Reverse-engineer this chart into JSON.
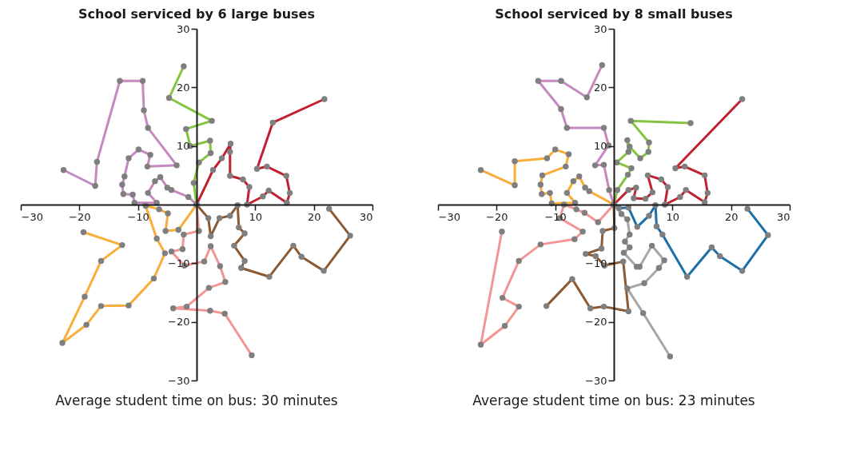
{
  "chart_data": [
    {
      "type": "line",
      "title": "School serviced by 6 large buses",
      "annotations": [
        "Average student time on bus: 30 minutes"
      ],
      "xlim": [
        -30,
        30
      ],
      "ylim": [
        -30,
        30
      ],
      "xticks": [
        -30,
        -20,
        -10,
        10,
        20,
        30
      ],
      "yticks": [
        -30,
        -20,
        -10,
        10,
        20,
        30
      ],
      "grid": false,
      "marker": "circle",
      "line_style": "solid",
      "series": [
        {
          "color": "#c688c0",
          "x": [
            0,
            -1.4,
            -4.3,
            -5.0,
            -6.2,
            -7.1,
            -8.3,
            -6.8,
            -10.6,
            -10.9,
            -12.5,
            -12.7,
            -12.3,
            -11.6,
            -9.9,
            -7.9,
            -8.4,
            -3.4,
            -8.3,
            -9.0,
            -9.2,
            -13.1,
            -17.0,
            -17.3,
            -22.7
          ],
          "values": [
            0,
            1.3,
            2.5,
            2.9,
            4.7,
            4.0,
            2.0,
            0.3,
            0.3,
            1.7,
            1.8,
            3.4,
            4.8,
            7.9,
            9.4,
            8.5,
            6.5,
            6.7,
            13.1,
            16.1,
            21.1,
            21.1,
            7.3,
            3.2,
            5.9
          ]
        },
        {
          "color": "#84c441",
          "x": [
            0,
            -0.5,
            0.4,
            2.4,
            2.3,
            -1.1,
            -1.8,
            2.6,
            -4.7,
            -2.2
          ],
          "values": [
            0,
            3.7,
            7.2,
            8.8,
            10.9,
            10.0,
            12.9,
            14.3,
            18.2,
            23.6
          ]
        },
        {
          "color": "#c0202f",
          "x": [
            0,
            2.8,
            4.3,
            5.8,
            5.7,
            5.7,
            7.9,
            9.0,
            8.6,
            11.3,
            12.3,
            15.4,
            15.9,
            15.3,
            12.0,
            10.3,
            13.0,
            21.8
          ],
          "values": [
            0,
            5.9,
            7.9,
            10.4,
            9.0,
            4.9,
            4.3,
            3.0,
            0,
            1.4,
            2.4,
            0.3,
            2.0,
            4.9,
            6.5,
            6.1,
            14.0,
            18.0
          ]
        },
        {
          "color": "#f9ad3b",
          "x": [
            0,
            -3.1,
            -5.3,
            -4.9,
            -6.4,
            -8.7,
            -6.8,
            -5.4,
            -7.3,
            -11.6,
            -16.3,
            -18.8,
            -22.9,
            -19.1,
            -16.3,
            -12.7,
            -19.3
          ],
          "values": [
            0,
            -4.3,
            -4.5,
            -1.5,
            -0.8,
            -0.2,
            -5.8,
            -8.3,
            -12.6,
            -17.2,
            -17.3,
            -20.5,
            -23.6,
            -15.7,
            -9.6,
            -6.9,
            -4.7
          ]
        },
        {
          "color": "#f49595",
          "x": [
            0,
            0.4,
            -2.2,
            -2.4,
            -4.3,
            -2.1,
            1.3,
            2.4,
            4.0,
            4.9,
            2.1,
            -1.7,
            -4.0,
            2.3,
            4.8,
            9.4
          ],
          "values": [
            0,
            -4.5,
            -5.1,
            -7.6,
            -8.0,
            -10.4,
            -9.7,
            -7.1,
            -10.5,
            -13.2,
            -14.2,
            -17.4,
            -17.7,
            -18.1,
            -18.6,
            -25.7
          ]
        },
        {
          "color": "#8b5a32",
          "x": [
            0,
            2.0,
            2.4,
            3.9,
            5.7,
            7.0,
            7.2,
            8.2,
            6.4,
            8.2,
            7.6,
            12.4,
            16.5,
            17.9,
            21.7,
            26.2,
            22.6
          ],
          "values": [
            0,
            -2.3,
            -5.4,
            -2.3,
            -1.9,
            -0.1,
            -3.9,
            -4.9,
            -7.0,
            -9.6,
            -10.8,
            -12.3,
            -7.0,
            -8.9,
            -11.3,
            -5.3,
            -0.7
          ]
        }
      ]
    },
    {
      "type": "line",
      "title": "School serviced by 8 small buses",
      "annotations": [
        "Average student time on bus: 23 minutes"
      ],
      "xlim": [
        -30,
        30
      ],
      "ylim": [
        -30,
        30
      ],
      "xticks": [
        -30,
        -20,
        -10,
        10,
        20,
        30
      ],
      "yticks": [
        -30,
        -20,
        -10,
        10,
        20,
        30
      ],
      "grid": false,
      "marker": "circle",
      "line_style": "solid",
      "series": [
        {
          "color": "#c688c0",
          "x": [
            0,
            -0.8,
            -1.7,
            -3.2,
            -0.9,
            -1.7,
            -8.0,
            -9.0,
            -12.9,
            -9.0,
            -4.6,
            -2.0
          ],
          "values": [
            0,
            2.5,
            6.8,
            6.7,
            10.1,
            13.1,
            13.1,
            16.3,
            21.1,
            21.1,
            18.3,
            23.8
          ]
        },
        {
          "color": "#f9ad3b",
          "x": [
            0,
            -4.2,
            -4.9,
            -5.9,
            -6.9,
            -8.0,
            -6.6,
            -10.6,
            -10.9,
            -12.3,
            -12.5,
            -12.2,
            -8.2,
            -7.7,
            -10.0,
            -11.4,
            -16.9,
            -16.9,
            -22.7
          ],
          "values": [
            0,
            2.3,
            2.9,
            4.8,
            4.0,
            2.0,
            0.3,
            0.2,
            2.0,
            1.8,
            3.4,
            5.0,
            6.5,
            8.6,
            9.4,
            7.9,
            7.4,
            3.3,
            5.9
          ]
        },
        {
          "color": "#84c441",
          "x": [
            0,
            0.6,
            2.4,
            3.0,
            0.5,
            2.5,
            2.3,
            2.7,
            4.5,
            5.9,
            6.0,
            2.9,
            13.1
          ],
          "values": [
            0,
            2.5,
            5.1,
            6.2,
            7.2,
            9.0,
            11.0,
            9.9,
            7.9,
            9.0,
            10.6,
            14.3,
            13.9
          ]
        },
        {
          "color": "#c0202f",
          "x": [
            0,
            2.5,
            3.8,
            3.4,
            5.4,
            6.6,
            5.8,
            8.1,
            9.2,
            8.7,
            11.3,
            12.3,
            15.5,
            16.0,
            15.5,
            12.1,
            10.5,
            21.9
          ],
          "values": [
            0,
            2.5,
            2.9,
            1.1,
            1.0,
            2.1,
            5.0,
            4.3,
            3.0,
            0,
            1.3,
            2.5,
            0.4,
            2.0,
            5.0,
            6.5,
            6.2,
            18.0
          ]
        },
        {
          "color": "#1a6fa8",
          "x": [
            0,
            0.9,
            2.5,
            4.0,
            6.0,
            7.1,
            7.3,
            8.3,
            12.5,
            16.7,
            18.1,
            21.9,
            26.3,
            22.8
          ],
          "values": [
            0,
            -0.6,
            -0.5,
            -3.8,
            -1.9,
            -0.1,
            -3.7,
            -5.1,
            -12.3,
            -7.3,
            -8.8,
            -11.3,
            -5.2,
            -0.7
          ]
        },
        {
          "color": "#f49595",
          "x": [
            0,
            -2.7,
            -5.0,
            -6.4,
            -8.5,
            -9.2,
            -5.3,
            -6.7,
            -12.5,
            -16.2,
            -19.0,
            -16.2,
            -18.6,
            -22.7,
            -19.1
          ],
          "values": [
            0,
            -3.0,
            -1.4,
            -0.8,
            0,
            -2.3,
            -4.6,
            -5.9,
            -6.8,
            -9.6,
            -15.9,
            -17.4,
            -20.7,
            -23.9,
            -4.6
          ]
        },
        {
          "color": "#8b5a32",
          "x": [
            0,
            0.1,
            -1.9,
            -2.1,
            -4.8,
            -3.1,
            -1.6,
            1.6,
            2.5,
            -1.7,
            -4.0,
            -7.1,
            -11.5
          ],
          "values": [
            0,
            -4.0,
            -4.5,
            -7.5,
            -8.4,
            -8.8,
            -10.4,
            -9.7,
            -18.2,
            -17.4,
            -17.7,
            -12.7,
            -17.3
          ]
        },
        {
          "color": "#a7a7a7",
          "x": [
            0,
            1.3,
            2.3,
            2.7,
            1.9,
            2.7,
            1.7,
            3.9,
            4.4,
            6.5,
            8.6,
            7.7,
            5.2,
            2.3,
            5.0,
            9.6
          ],
          "values": [
            0,
            -1.6,
            -2.5,
            -5.1,
            -6.3,
            -7.3,
            -8.2,
            -10.6,
            -10.6,
            -7.0,
            -9.5,
            -10.8,
            -13.4,
            -14.3,
            -18.5,
            -25.9
          ]
        }
      ]
    }
  ]
}
